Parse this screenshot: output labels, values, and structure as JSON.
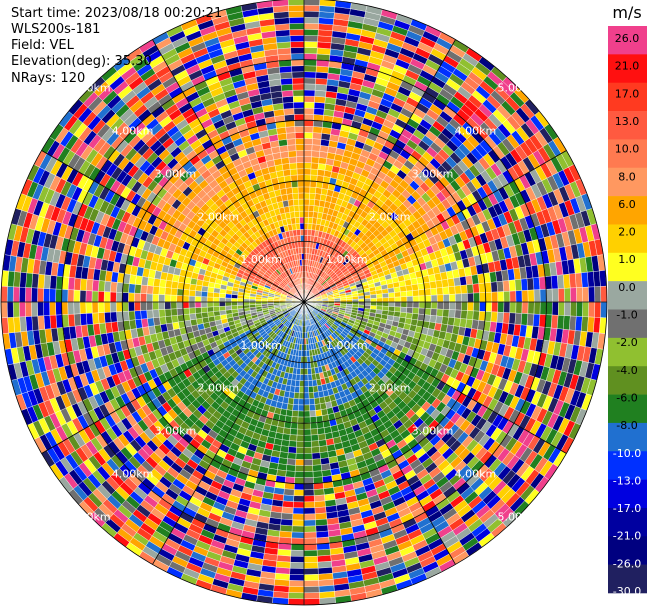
{
  "header": {
    "start_time": "Start time: 2023/08/18 00:20:21",
    "instrument": "WLS200s-181",
    "field": "Field: VEL",
    "elevation": "Elevation(deg): 35.30",
    "nrays": "NRays: 120"
  },
  "chart_data": {
    "type": "heatmap",
    "subtype": "polar-ppi",
    "unit": "m/s",
    "n_rays": 120,
    "max_range_km": 5.0,
    "range_rings_km": [
      1.0,
      2.0,
      3.0,
      4.0,
      5.0
    ],
    "range_ring_labels": [
      "1.00km",
      "2.00km",
      "3.00km",
      "4.00km",
      "5.00km"
    ],
    "colorbar": {
      "ticks": [
        "26.0",
        "21.0",
        "17.0",
        "13.0",
        "10.0",
        "8.0",
        "6.0",
        "2.0",
        "1.0",
        "0.0",
        "-1.0",
        "-2.0",
        "-4.0",
        "-6.0",
        "-8.0",
        "-10.0",
        "-13.0",
        "-17.0",
        "-21.0",
        "-26.0",
        "-30.0"
      ],
      "colors": [
        "#f0408c",
        "#ff1010",
        "#ff3a20",
        "#ff5a40",
        "#ff7a50",
        "#ff9860",
        "#ffa500",
        "#ffd000",
        "#ffff20",
        "#9aa8a0",
        "#707070",
        "#90c030",
        "#609020",
        "#208020",
        "#2070d0",
        "#0030ff",
        "#0000e0",
        "#0000a0",
        "#000080",
        "#202060"
      ]
    },
    "pattern_summary": "north half positive (orange/yellow), south half negative (blue/green), noise speckle beyond ~3 km"
  }
}
